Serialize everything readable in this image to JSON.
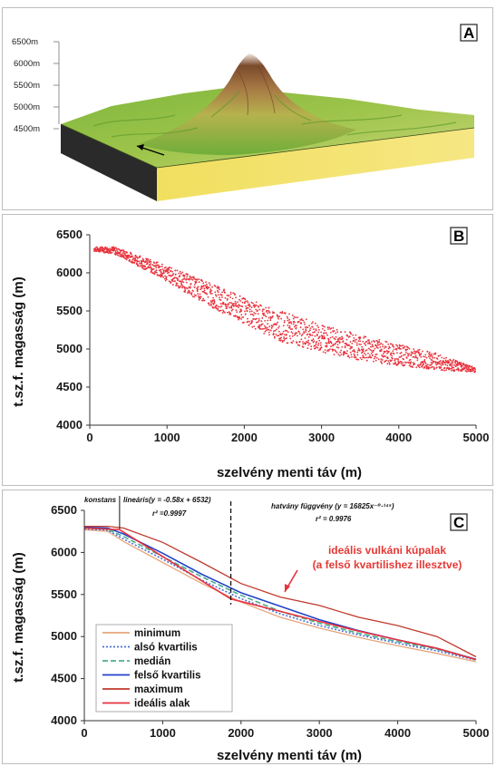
{
  "panel_a": {
    "label": "A",
    "altitude_labels": [
      "6500m",
      "6000m",
      "5500m",
      "5000m",
      "4500m"
    ]
  },
  "chart_data": [
    {
      "id": "B",
      "type": "scatter",
      "panel_label": "B",
      "xlabel": "szelvény menti táv (m)",
      "ylabel": "t.sz.f. magasság (m)",
      "xlim": [
        0,
        5000
      ],
      "ylim": [
        4000,
        6500
      ],
      "xticks": [
        0,
        1000,
        2000,
        3000,
        4000,
        5000
      ],
      "yticks": [
        4000,
        4500,
        5000,
        5500,
        6000,
        6500
      ],
      "grid": false,
      "color": "#e8323c",
      "center_line": [
        [
          60,
          6310
        ],
        [
          300,
          6300
        ],
        [
          500,
          6220
        ],
        [
          1000,
          5990
        ],
        [
          1500,
          5740
        ],
        [
          2000,
          5500
        ],
        [
          2500,
          5290
        ],
        [
          3000,
          5140
        ],
        [
          3500,
          5020
        ],
        [
          4000,
          4920
        ],
        [
          4500,
          4830
        ],
        [
          5000,
          4720
        ]
      ],
      "band_width": [
        [
          60,
          30
        ],
        [
          500,
          60
        ],
        [
          1500,
          150
        ],
        [
          2500,
          200
        ],
        [
          3500,
          170
        ],
        [
          4500,
          110
        ],
        [
          5000,
          30
        ]
      ]
    },
    {
      "id": "C",
      "type": "line",
      "panel_label": "C",
      "xlabel": "szelvény menti táv (m)",
      "ylabel": "t.sz.f. magasság (m)",
      "xlim": [
        0,
        5000
      ],
      "ylim": [
        4000,
        6500
      ],
      "xticks": [
        0,
        1000,
        2000,
        3000,
        4000,
        5000
      ],
      "yticks": [
        4000,
        4500,
        5000,
        5500,
        6000,
        6500
      ],
      "grid": false,
      "annotations": {
        "konstans": "konstans",
        "linear": "lineáris(y = -0.58x + 6532)",
        "linear_r2": "r² =0.9997",
        "power": "hatvány függvény (y = 16825x⁻⁰·¹⁴⁵)",
        "power_r2": "r² = 0.9976",
        "ideal_line1": "ideális vulkáni kúpalak",
        "ideal_line2": "(a felső kvartilishez illesztve)"
      },
      "divider_x": 1870,
      "series": [
        {
          "name": "minimum",
          "color": "#e6a57c",
          "dash": "",
          "width": 1.3,
          "x": [
            0,
            300,
            500,
            1000,
            1500,
            2000,
            2500,
            3000,
            3500,
            4000,
            4500,
            5000
          ],
          "y": [
            6270,
            6250,
            6130,
            5880,
            5630,
            5410,
            5230,
            5100,
            4990,
            4890,
            4800,
            4700
          ]
        },
        {
          "name": "alsó kvartilis",
          "color": "#4a6fd6",
          "dash": "2,2",
          "width": 1.6,
          "x": [
            0,
            300,
            500,
            1000,
            1500,
            2000,
            2500,
            3000,
            3500,
            4000,
            4500,
            5000
          ],
          "y": [
            6280,
            6265,
            6160,
            5920,
            5670,
            5450,
            5270,
            5130,
            5020,
            4920,
            4830,
            4720
          ]
        },
        {
          "name": "medián",
          "color": "#4cae8c",
          "dash": "6,3",
          "width": 1.6,
          "x": [
            0,
            300,
            500,
            1000,
            1500,
            2000,
            2500,
            3000,
            3500,
            4000,
            4500,
            5000
          ],
          "y": [
            6290,
            6275,
            6190,
            5950,
            5710,
            5490,
            5300,
            5160,
            5040,
            4940,
            4850,
            4730
          ]
        },
        {
          "name": "felső kvartilis",
          "color": "#2443c9",
          "dash": "",
          "width": 1.6,
          "x": [
            0,
            300,
            500,
            1000,
            1500,
            2000,
            2500,
            3000,
            3500,
            4000,
            4500,
            5000
          ],
          "y": [
            6300,
            6290,
            6220,
            5990,
            5740,
            5520,
            5360,
            5200,
            5070,
            4960,
            4860,
            4730
          ]
        },
        {
          "name": "maximum",
          "color": "#c0392b",
          "dash": "",
          "width": 1.3,
          "x": [
            0,
            300,
            500,
            1000,
            1500,
            2000,
            2500,
            3000,
            3500,
            4000,
            4500,
            5000
          ],
          "y": [
            6310,
            6310,
            6290,
            6120,
            5880,
            5630,
            5470,
            5370,
            5230,
            5130,
            5000,
            4760
          ]
        },
        {
          "name": "ideális alak",
          "color": "#e8323c",
          "dash": "",
          "width": 1.6,
          "x": [
            0,
            450,
            1000,
            1500,
            1870,
            2500,
            3000,
            3500,
            4000,
            4500,
            5000
          ],
          "y": [
            6290,
            6270,
            5952,
            5662,
            5447,
            5300,
            5180,
            5065,
            4960,
            4860,
            4725
          ]
        }
      ]
    }
  ]
}
